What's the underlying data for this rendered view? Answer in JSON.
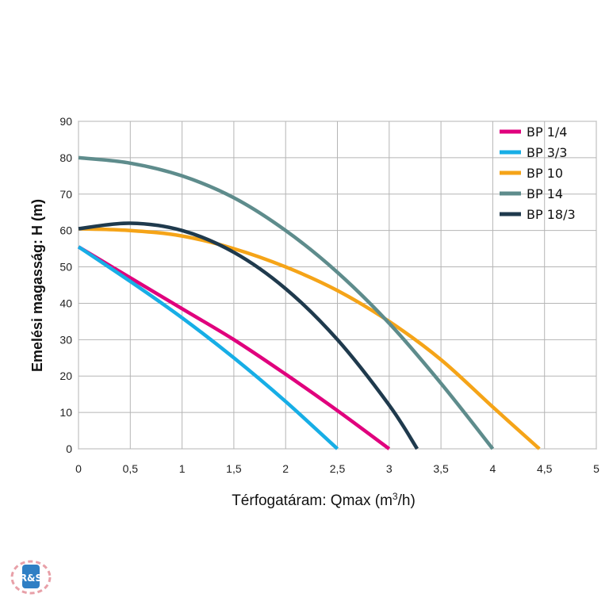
{
  "chart_data": {
    "type": "line",
    "xlabel_main": "Térfogatáram: Qmax (m",
    "xlabel_sup": "3",
    "xlabel_tail": "/h)",
    "ylabel": "Emelési magasság: H (m)",
    "xlim": [
      0,
      5
    ],
    "ylim": [
      0,
      90
    ],
    "grid": true,
    "legend_position": "top-right",
    "x_ticks": [
      "0",
      "0,5",
      "1",
      "1,5",
      "2",
      "2,5",
      "3",
      "3,5",
      "4",
      "4,5",
      "5"
    ],
    "y_ticks": [
      "0",
      "10",
      "20",
      "30",
      "40",
      "50",
      "60",
      "70",
      "80",
      "90"
    ],
    "series": [
      {
        "name": "BP 1/4",
        "color": "#e0007d",
        "x": [
          0,
          0.5,
          1,
          1.5,
          2,
          2.5,
          3
        ],
        "y": [
          55.5,
          47,
          38.5,
          30,
          20.5,
          10.5,
          0
        ]
      },
      {
        "name": "BP 3/3",
        "color": "#17aee6",
        "x": [
          0,
          0.5,
          1,
          1.5,
          2,
          2.5
        ],
        "y": [
          55.5,
          46,
          36,
          25,
          13,
          0
        ]
      },
      {
        "name": "BP 10",
        "color": "#f5a418",
        "x": [
          0,
          0.5,
          1,
          1.5,
          2,
          2.5,
          3,
          3.5,
          4,
          4.45
        ],
        "y": [
          60.5,
          60,
          58.5,
          55,
          50,
          43.5,
          35,
          24.5,
          11.5,
          0
        ]
      },
      {
        "name": "BP 14",
        "color": "#5e8c8c",
        "x": [
          0,
          0.5,
          1,
          1.5,
          2,
          2.5,
          3,
          3.5,
          4
        ],
        "y": [
          80,
          78.5,
          75,
          69,
          60,
          48.5,
          34.5,
          18,
          0
        ]
      },
      {
        "name": "BP 18/3",
        "color": "#1f3a4d",
        "x": [
          0,
          0.5,
          1,
          1.5,
          2,
          2.5,
          3,
          3.27
        ],
        "y": [
          60.5,
          62,
          60,
          54,
          44,
          30,
          12,
          0
        ]
      }
    ]
  },
  "logo": {
    "text": "R&S"
  }
}
